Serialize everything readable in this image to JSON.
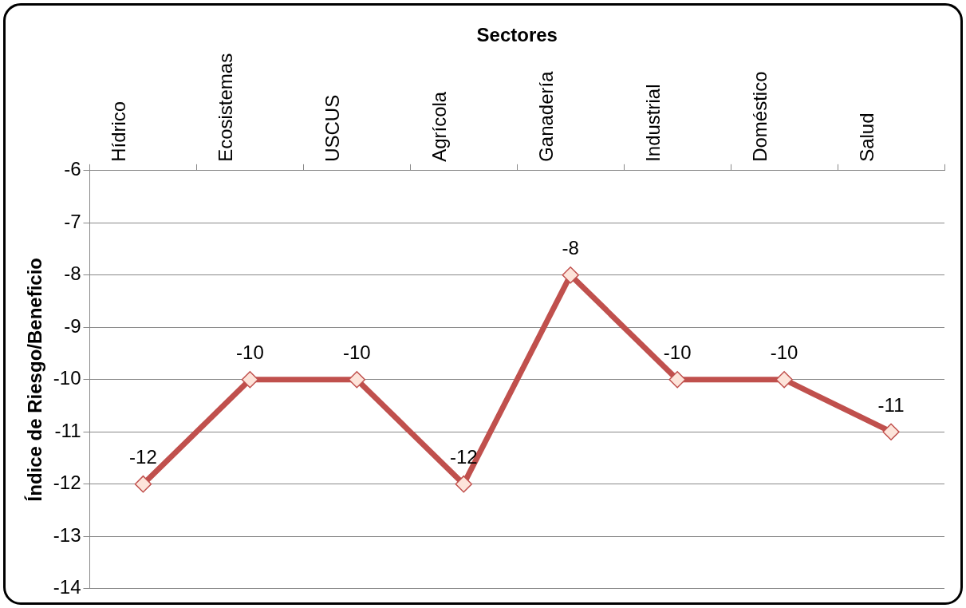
{
  "chart_data": {
    "type": "line",
    "xlabel": "Sectores",
    "ylabel": "Índice de Riesgo/Beneficio",
    "categories": [
      "Hídrico",
      "Ecosistemas",
      "USCUS",
      "Agrícola",
      "Ganadería",
      "Industrial",
      "Doméstico",
      "Salud"
    ],
    "series": [
      {
        "color": "#c0504d",
        "values": [
          -12,
          -10,
          -10,
          -12,
          -8,
          -10,
          -10,
          -11
        ]
      }
    ],
    "ylim": [
      -14,
      -6
    ],
    "yticks": [
      -14,
      -13,
      -12,
      -11,
      -10,
      -9,
      -8,
      -7,
      -6
    ],
    "grid": "y",
    "legend": false,
    "marker": "diamond",
    "line_style": "solid",
    "data_labels": true
  }
}
